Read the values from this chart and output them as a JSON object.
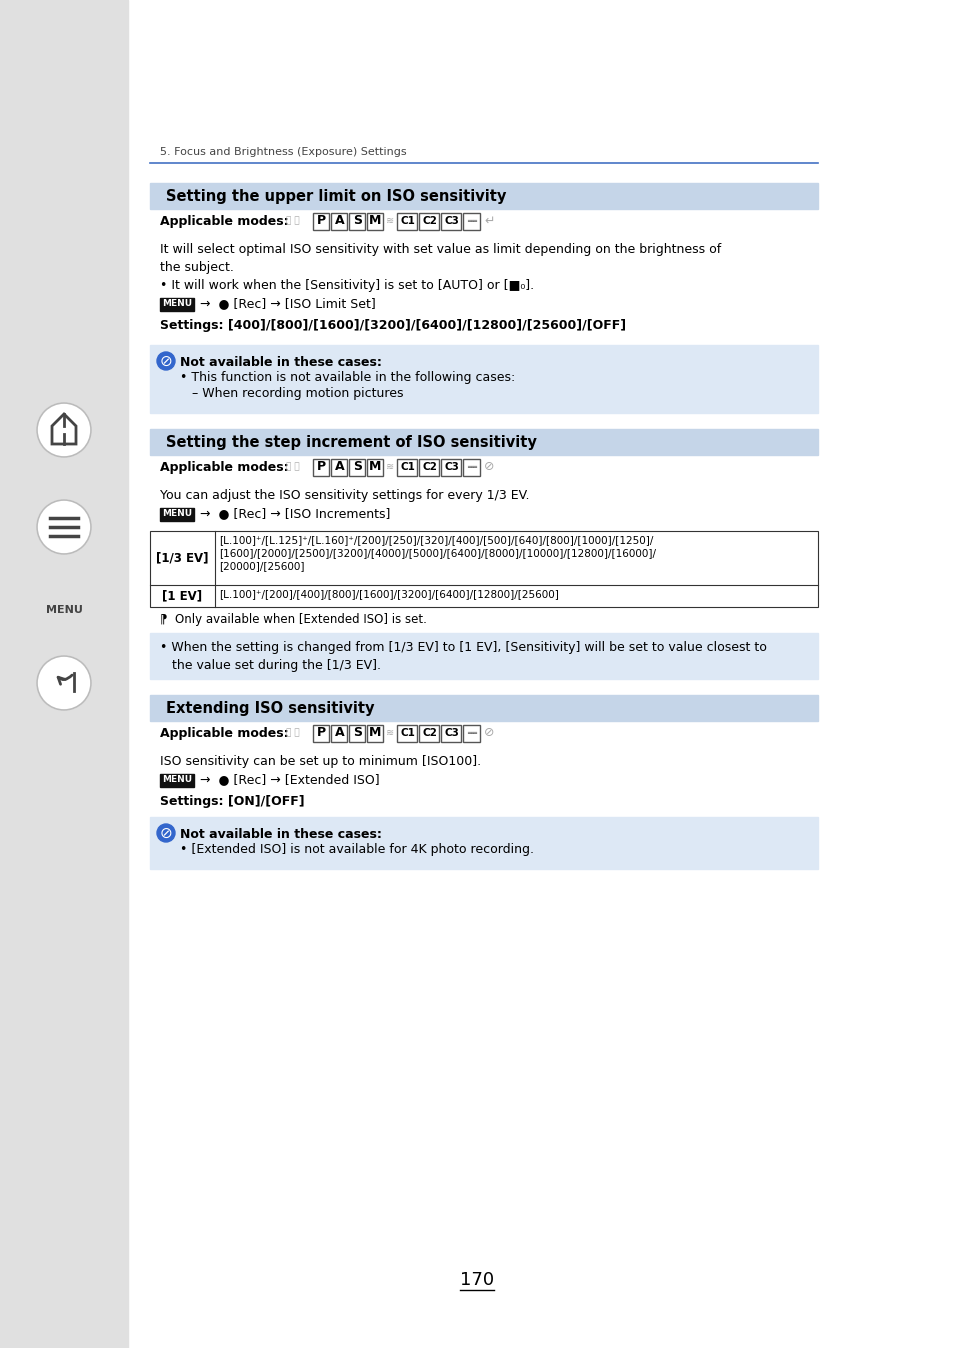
{
  "bg_color": "#ffffff",
  "sidebar_color": "#e0e0e0",
  "header_text": "5. Focus and Brightness (Exposure) Settings",
  "section1_title": "Setting the upper limit on ISO sensitivity",
  "section1_header_bg": "#c5d5e8",
  "section1_body": "It will select optimal ISO sensitivity with set value as limit depending on the brightness of\nthe subject.",
  "section1_bullet": "• It will work when the [Sensitivity] is set to [AUTO] or [■ISO].",
  "section1_settings": "Settings: [400]/[800]/[1600]/[3200]/[6400]/[12800]/[25600]/[OFF]",
  "section1_na_bg": "#dde8f5",
  "section1_na_title": "Not available in these cases:",
  "section1_na1": "• This function is not available in the following cases:",
  "section1_na2": "– When recording motion pictures",
  "section2_title": "Setting the step increment of ISO sensitivity",
  "section2_header_bg": "#c5d5e8",
  "section2_body": "You can adjust the ISO sensitivity settings for every 1/3 EV.",
  "table_row1_label": "[1/3 EV]",
  "table_row1": "[L.100]⁺/[L.125]⁺/[L.160]⁺/[200]/[250]/[320]/[400]/[500]/[640]/[800]/[1000]/[1250]/\n[1600]/[2000]/[2500]/[3200]/[4000]/[5000]/[6400]/[8000]/[10000]/[12800]/[16000]/\n[20000]/[25600]",
  "table_row2_label": "[1 EV]",
  "table_row2": "[L.100]⁺/[200]/[400]/[800]/[1600]/[3200]/[6400]/[12800]/[25600]",
  "table_footnote": "⁋  Only available when [Extended ISO] is set.",
  "section2_note": "• When the setting is changed from [1/3 EV] to [1 EV], [Sensitivity] will be set to value closest to\n   the value set during the [1/3 EV].",
  "section2_note_bg": "#dde8f5",
  "section3_title": "Extending ISO sensitivity",
  "section3_header_bg": "#c5d5e8",
  "section3_body": "ISO sensitivity can be set up to minimum [ISO100].",
  "section3_settings": "Settings: [ON]/[OFF]",
  "section3_na_bg": "#dde8f5",
  "section3_na_title": "Not available in these cases:",
  "section3_na1": "• [Extended ISO] is not available for 4K photo recording.",
  "page_number": "170"
}
